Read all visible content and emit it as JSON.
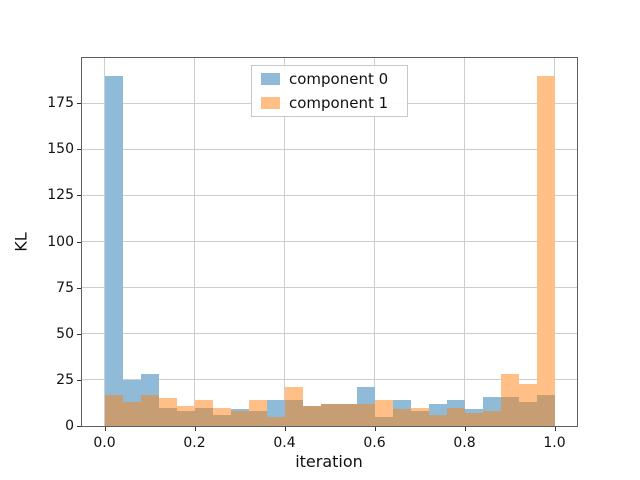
{
  "figure": {
    "x_tick_labels": [
      "0.0",
      "0.2",
      "0.4",
      "0.6",
      "0.8",
      "1.0"
    ],
    "y_tick_labels": [
      "0",
      "25",
      "50",
      "75",
      "100",
      "125",
      "150",
      "175"
    ]
  },
  "chart_data": {
    "type": "histogram",
    "title": "",
    "xlabel": "iteration",
    "ylabel": "KL",
    "grid": true,
    "legend_position": "upper center",
    "xlim": [
      -0.05,
      1.05
    ],
    "ylim": [
      0,
      199.5
    ],
    "x_tick_values": [
      0.0,
      0.2,
      0.4,
      0.6,
      0.8,
      1.0
    ],
    "y_tick_values": [
      0,
      25,
      50,
      75,
      100,
      125,
      150,
      175
    ],
    "bin_start": 0.0,
    "bin_width": 0.04,
    "bin_count": 25,
    "series": [
      {
        "name": "component 0",
        "color": "#8fbbd9",
        "values": [
          190,
          25,
          28,
          10,
          8,
          10,
          6,
          9,
          8,
          14,
          14,
          11,
          12,
          12,
          21,
          5,
          14,
          8,
          12,
          14,
          9,
          16,
          16,
          13,
          17
        ]
      },
      {
        "name": "component 1",
        "color": "#ffbf86",
        "values": [
          17,
          13,
          17,
          15,
          11,
          14,
          10,
          8,
          14,
          5,
          21,
          11,
          12,
          12,
          12,
          14,
          9,
          10,
          6,
          10,
          7,
          8,
          28,
          23,
          190
        ]
      }
    ],
    "overlap_color": "#c79d73"
  }
}
